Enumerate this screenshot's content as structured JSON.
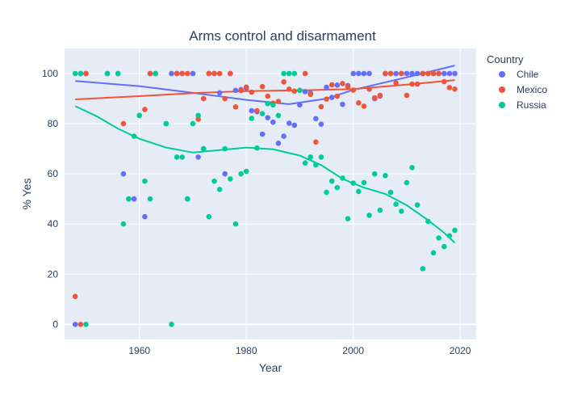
{
  "chart_data": {
    "type": "scatter",
    "title": "Arms control and disarmament",
    "xlabel": "Year",
    "ylabel": "% Yes",
    "xlim": [
      1946,
      2023
    ],
    "ylim": [
      -6,
      110
    ],
    "xticks": [
      1960,
      1980,
      2000,
      2020
    ],
    "yticks": [
      0,
      20,
      40,
      60,
      80,
      100
    ],
    "grid": true,
    "legend": {
      "title": "Country",
      "placement": "right"
    },
    "series": [
      {
        "name": "Chile",
        "color": "#636efa",
        "points": [
          [
            1948,
            0
          ],
          [
            1949,
            100
          ],
          [
            1950,
            100
          ],
          [
            1954,
            100
          ],
          [
            1956,
            100
          ],
          [
            1957,
            60
          ],
          [
            1958,
            50
          ],
          [
            1959,
            50
          ],
          [
            1960,
            83.3
          ],
          [
            1961,
            42.9
          ],
          [
            1962,
            100
          ],
          [
            1963,
            100
          ],
          [
            1965,
            80
          ],
          [
            1966,
            100
          ],
          [
            1967,
            100
          ],
          [
            1968,
            100
          ],
          [
            1969,
            50
          ],
          [
            1970,
            100
          ],
          [
            1971,
            66.7
          ],
          [
            1972,
            70
          ],
          [
            1973,
            100
          ],
          [
            1974,
            100
          ],
          [
            1975,
            92.3
          ],
          [
            1976,
            60
          ],
          [
            1977,
            100
          ],
          [
            1978,
            93.3
          ],
          [
            1979,
            93.6
          ],
          [
            1980,
            94.1
          ],
          [
            1981,
            85.2
          ],
          [
            1982,
            84.8
          ],
          [
            1983,
            75.8
          ],
          [
            1984,
            82.4
          ],
          [
            1985,
            80.6
          ],
          [
            1986,
            72.2
          ],
          [
            1987,
            75
          ],
          [
            1988,
            80.2
          ],
          [
            1989,
            79.4
          ],
          [
            1990,
            87.5
          ],
          [
            1991,
            92.8
          ],
          [
            1992,
            92.2
          ],
          [
            1993,
            82
          ],
          [
            1994,
            79.8
          ],
          [
            1995,
            94.5
          ],
          [
            1996,
            90.5
          ],
          [
            1997,
            95.4
          ],
          [
            1998,
            87.7
          ],
          [
            1999,
            95.2
          ],
          [
            2000,
            100
          ],
          [
            2001,
            100
          ],
          [
            2002,
            100
          ],
          [
            2003,
            100
          ],
          [
            2004,
            90
          ],
          [
            2005,
            91
          ],
          [
            2006,
            100
          ],
          [
            2007,
            100
          ],
          [
            2008,
            100
          ],
          [
            2009,
            100
          ],
          [
            2010,
            100
          ],
          [
            2011,
            100
          ],
          [
            2012,
            100
          ],
          [
            2013,
            100
          ],
          [
            2014,
            100
          ],
          [
            2015,
            100
          ],
          [
            2016,
            100
          ],
          [
            2017,
            100
          ],
          [
            2018,
            100
          ],
          [
            2019,
            100
          ]
        ],
        "trend": [
          [
            1948,
            97
          ],
          [
            1960,
            95
          ],
          [
            1970,
            92.3
          ],
          [
            1980,
            89.5
          ],
          [
            1988,
            87.8
          ],
          [
            1995,
            90
          ],
          [
            2000,
            93.5
          ],
          [
            2010,
            98.5
          ],
          [
            2019,
            103.2
          ]
        ]
      },
      {
        "name": "Mexico",
        "color": "#ef553b",
        "points": [
          [
            1948,
            11.1
          ],
          [
            1949,
            0
          ],
          [
            1950,
            100
          ],
          [
            1957,
            80
          ],
          [
            1961,
            85.7
          ],
          [
            1962,
            100
          ],
          [
            1967,
            100
          ],
          [
            1968,
            100
          ],
          [
            1969,
            100
          ],
          [
            1971,
            81.8
          ],
          [
            1972,
            90
          ],
          [
            1973,
            100
          ],
          [
            1974,
            100
          ],
          [
            1975,
            100
          ],
          [
            1976,
            90
          ],
          [
            1977,
            100
          ],
          [
            1978,
            86.7
          ],
          [
            1979,
            93.2
          ],
          [
            1980,
            94.6
          ],
          [
            1981,
            92.6
          ],
          [
            1982,
            85.2
          ],
          [
            1983,
            94.8
          ],
          [
            1984,
            91
          ],
          [
            1985,
            88.2
          ],
          [
            1986,
            88.9
          ],
          [
            1987,
            96.7
          ],
          [
            1988,
            93.8
          ],
          [
            1989,
            93
          ],
          [
            1990,
            93.3
          ],
          [
            1991,
            100
          ],
          [
            1992,
            91.7
          ],
          [
            1993,
            72.7
          ],
          [
            1994,
            86.8
          ],
          [
            1995,
            89.8
          ],
          [
            1996,
            95.5
          ],
          [
            1997,
            91
          ],
          [
            1998,
            96
          ],
          [
            1999,
            94.8
          ],
          [
            2000,
            93.4
          ],
          [
            2001,
            88.3
          ],
          [
            2002,
            87
          ],
          [
            2003,
            93.8
          ],
          [
            2004,
            90.3
          ],
          [
            2005,
            91.3
          ],
          [
            2006,
            100
          ],
          [
            2007,
            100
          ],
          [
            2008,
            96.2
          ],
          [
            2009,
            100
          ],
          [
            2010,
            91.3
          ],
          [
            2011,
            95.8
          ],
          [
            2012,
            95.8
          ],
          [
            2013,
            100
          ],
          [
            2014,
            100
          ],
          [
            2015,
            100
          ],
          [
            2016,
            100
          ],
          [
            2017,
            96.8
          ],
          [
            2018,
            94.4
          ],
          [
            2019,
            93.8
          ]
        ],
        "trend": [
          [
            1948,
            89.7
          ],
          [
            1960,
            91
          ],
          [
            1970,
            92.2
          ],
          [
            1980,
            93
          ],
          [
            1990,
            93.3
          ],
          [
            2000,
            93.8
          ],
          [
            2010,
            95.6
          ],
          [
            2019,
            97.4
          ]
        ]
      },
      {
        "name": "Russia",
        "color": "#00cc96",
        "points": [
          [
            1948,
            100
          ],
          [
            1949,
            100
          ],
          [
            1950,
            0
          ],
          [
            1954,
            100
          ],
          [
            1956,
            100
          ],
          [
            1957,
            40
          ],
          [
            1958,
            50
          ],
          [
            1959,
            75
          ],
          [
            1960,
            83.3
          ],
          [
            1961,
            57.1
          ],
          [
            1962,
            50
          ],
          [
            1963,
            100
          ],
          [
            1965,
            80
          ],
          [
            1966,
            0
          ],
          [
            1967,
            66.7
          ],
          [
            1968,
            66.7
          ],
          [
            1969,
            50
          ],
          [
            1970,
            80
          ],
          [
            1971,
            83.3
          ],
          [
            1972,
            70
          ],
          [
            1973,
            42.9
          ],
          [
            1974,
            57.1
          ],
          [
            1975,
            53.8
          ],
          [
            1976,
            70
          ],
          [
            1977,
            58
          ],
          [
            1978,
            40
          ],
          [
            1979,
            60
          ],
          [
            1980,
            61
          ],
          [
            1981,
            82.1
          ],
          [
            1982,
            70.3
          ],
          [
            1983,
            84
          ],
          [
            1984,
            88
          ],
          [
            1985,
            87.5
          ],
          [
            1986,
            83.3
          ],
          [
            1987,
            100
          ],
          [
            1988,
            100
          ],
          [
            1989,
            100
          ],
          [
            1990,
            93.3
          ],
          [
            1991,
            64.3
          ],
          [
            1992,
            66.7
          ],
          [
            1993,
            63.6
          ],
          [
            1994,
            66.7
          ],
          [
            1995,
            52.6
          ],
          [
            1996,
            57.1
          ],
          [
            1997,
            54.5
          ],
          [
            1998,
            58.3
          ],
          [
            1999,
            42.1
          ],
          [
            2000,
            56.3
          ],
          [
            2001,
            53
          ],
          [
            2002,
            56.5
          ],
          [
            2003,
            43.5
          ],
          [
            2004,
            60
          ],
          [
            2005,
            45.5
          ],
          [
            2006,
            59.3
          ],
          [
            2007,
            52.6
          ],
          [
            2008,
            47.9
          ],
          [
            2009,
            45.1
          ],
          [
            2010,
            56.5
          ],
          [
            2011,
            62.5
          ],
          [
            2012,
            47.6
          ],
          [
            2013,
            22.2
          ],
          [
            2014,
            41
          ],
          [
            2015,
            28.5
          ],
          [
            2016,
            34.4
          ],
          [
            2017,
            31
          ],
          [
            2018,
            35.3
          ],
          [
            2019,
            37.5
          ]
        ],
        "trend": [
          [
            1948,
            87
          ],
          [
            1952,
            83
          ],
          [
            1956,
            78
          ],
          [
            1960,
            74
          ],
          [
            1965,
            70.5
          ],
          [
            1970,
            68.5
          ],
          [
            1975,
            69.5
          ],
          [
            1980,
            70.5
          ],
          [
            1985,
            69.8
          ],
          [
            1990,
            67.3
          ],
          [
            1994,
            63.5
          ],
          [
            1998,
            58
          ],
          [
            2002,
            54.5
          ],
          [
            2006,
            52
          ],
          [
            2010,
            47.5
          ],
          [
            2014,
            41.5
          ],
          [
            2017,
            36.5
          ],
          [
            2019,
            32.5
          ]
        ]
      }
    ]
  }
}
